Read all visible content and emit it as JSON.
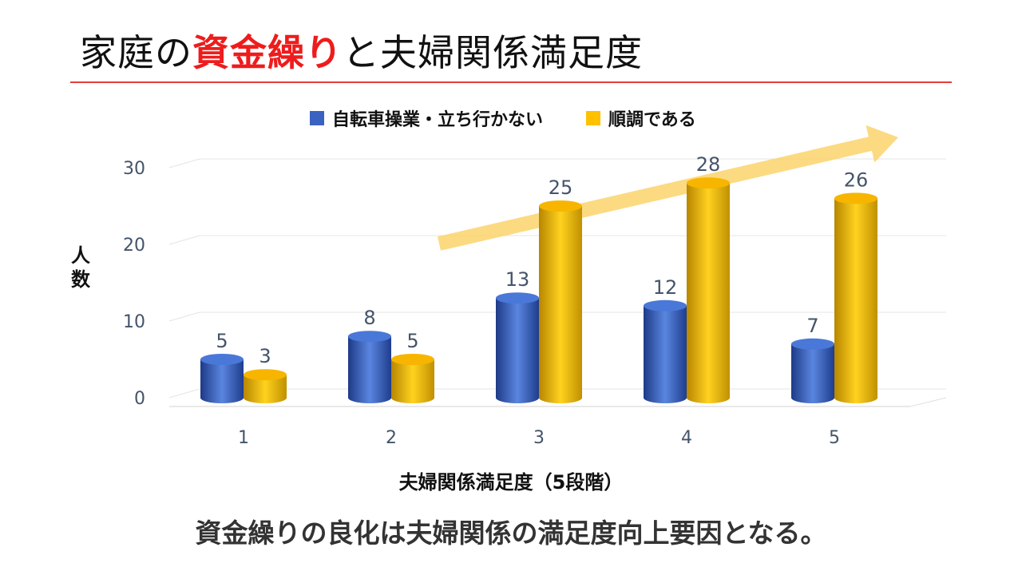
{
  "slide": {
    "title_pre": "家庭の",
    "title_highlight": "資金繰り",
    "title_post": "と夫婦関係満足度",
    "footer": "資金繰りの良化は夫婦関係の満足度向上要因となる。"
  },
  "chart_data": {
    "type": "bar",
    "categories": [
      "1",
      "2",
      "3",
      "4",
      "5"
    ],
    "series": [
      {
        "name": "自転車操業・立ち行かない",
        "values": [
          5,
          8,
          13,
          12,
          7
        ],
        "color": "#3a62c0"
      },
      {
        "name": "順調である",
        "values": [
          3,
          5,
          25,
          28,
          26
        ],
        "color": "#ffc000"
      }
    ],
    "title": "",
    "xlabel": "夫婦関係満足度（5段階）",
    "ylabel": "人数",
    "ylim": [
      0,
      30
    ],
    "yticks": [
      "0",
      "10",
      "20",
      "30"
    ],
    "grid": true,
    "legend": "top",
    "annotation": "upward trend arrow",
    "arrow_color": "#fcd36b"
  }
}
